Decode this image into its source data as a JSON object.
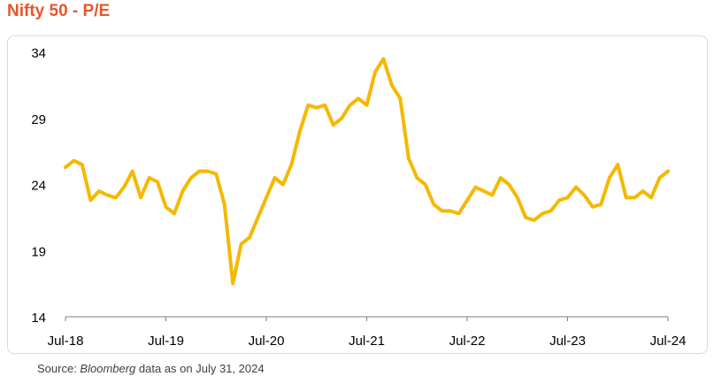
{
  "title": "Nifty 50 - P/E",
  "source": {
    "prefix": "Source: ",
    "name": "Bloomberg",
    "suffix": " data as on July 31, 2024"
  },
  "colors": {
    "title": "#e8552a",
    "series": "#f5b800",
    "axis": "#7f7f7f"
  },
  "chart_data": {
    "type": "line",
    "title": "Nifty 50 - P/E",
    "xlabel": "",
    "ylabel": "",
    "ylim": [
      14,
      34
    ],
    "yticks": [
      14,
      19,
      24,
      29,
      34
    ],
    "xticks": [
      "Jul-18",
      "Jul-19",
      "Jul-20",
      "Jul-21",
      "Jul-22",
      "Jul-23",
      "Jul-24"
    ],
    "xlim": [
      "2018-07",
      "2024-07"
    ],
    "grid": false,
    "legend": "none",
    "series": [
      {
        "name": "",
        "x": [
          "2018-07",
          "2018-08",
          "2018-09",
          "2018-10",
          "2018-11",
          "2018-12",
          "2019-01",
          "2019-02",
          "2019-03",
          "2019-04",
          "2019-05",
          "2019-06",
          "2019-07",
          "2019-08",
          "2019-09",
          "2019-10",
          "2019-11",
          "2019-12",
          "2020-01",
          "2020-02",
          "2020-03",
          "2020-04",
          "2020-05",
          "2020-06",
          "2020-07",
          "2020-08",
          "2020-09",
          "2020-10",
          "2020-11",
          "2020-12",
          "2021-01",
          "2021-02",
          "2021-03",
          "2021-04",
          "2021-05",
          "2021-06",
          "2021-07",
          "2021-08",
          "2021-09",
          "2021-10",
          "2021-11",
          "2021-12",
          "2022-01",
          "2022-02",
          "2022-03",
          "2022-04",
          "2022-05",
          "2022-06",
          "2022-07",
          "2022-08",
          "2022-09",
          "2022-10",
          "2022-11",
          "2022-12",
          "2023-01",
          "2023-02",
          "2023-03",
          "2023-04",
          "2023-05",
          "2023-06",
          "2023-07",
          "2023-08",
          "2023-09",
          "2023-10",
          "2023-11",
          "2023-12",
          "2024-01",
          "2024-02",
          "2024-03",
          "2024-04",
          "2024-05",
          "2024-06",
          "2024-07"
        ],
        "values": [
          25.3,
          25.8,
          25.5,
          22.8,
          23.5,
          23.2,
          23.0,
          23.8,
          25.0,
          23.0,
          24.5,
          24.2,
          22.3,
          21.8,
          23.5,
          24.5,
          25.0,
          25.0,
          24.8,
          22.5,
          16.5,
          19.5,
          20.0,
          21.5,
          23.0,
          24.5,
          24.0,
          25.5,
          28.0,
          30.0,
          29.8,
          30.0,
          28.5,
          29.0,
          30.0,
          30.5,
          30.0,
          32.5,
          33.5,
          31.5,
          30.5,
          26.0,
          24.5,
          24.0,
          22.5,
          22.0,
          22.0,
          21.8,
          22.8,
          23.8,
          23.5,
          23.2,
          24.5,
          24.0,
          23.0,
          21.5,
          21.3,
          21.8,
          22.0,
          22.8,
          23.0,
          23.8,
          23.2,
          22.3,
          22.5,
          24.5,
          25.5,
          23.0,
          23.0,
          23.5,
          23.0,
          24.5,
          25.0
        ]
      }
    ]
  }
}
